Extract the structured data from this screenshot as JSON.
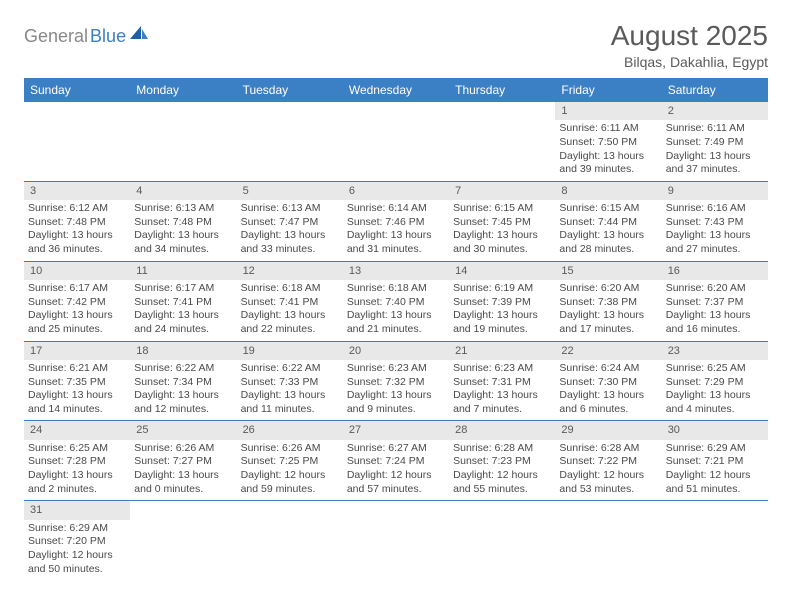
{
  "logo": {
    "text1": "General",
    "text2": "Blue"
  },
  "title": "August 2025",
  "location": "Bilqas, Dakahlia, Egypt",
  "colors": {
    "header_bg": "#3b7fc4",
    "header_text": "#ffffff",
    "datenum_bg": "#e8e8e8",
    "text": "#4a4a4a",
    "divider": "#3b7fc4"
  },
  "day_names": [
    "Sunday",
    "Monday",
    "Tuesday",
    "Wednesday",
    "Thursday",
    "Friday",
    "Saturday"
  ],
  "weeks": [
    [
      null,
      null,
      null,
      null,
      null,
      {
        "d": "1",
        "sr": "6:11 AM",
        "ss": "7:50 PM",
        "dl": "13 hours and 39 minutes."
      },
      {
        "d": "2",
        "sr": "6:11 AM",
        "ss": "7:49 PM",
        "dl": "13 hours and 37 minutes."
      }
    ],
    [
      {
        "d": "3",
        "sr": "6:12 AM",
        "ss": "7:48 PM",
        "dl": "13 hours and 36 minutes."
      },
      {
        "d": "4",
        "sr": "6:13 AM",
        "ss": "7:48 PM",
        "dl": "13 hours and 34 minutes."
      },
      {
        "d": "5",
        "sr": "6:13 AM",
        "ss": "7:47 PM",
        "dl": "13 hours and 33 minutes."
      },
      {
        "d": "6",
        "sr": "6:14 AM",
        "ss": "7:46 PM",
        "dl": "13 hours and 31 minutes."
      },
      {
        "d": "7",
        "sr": "6:15 AM",
        "ss": "7:45 PM",
        "dl": "13 hours and 30 minutes."
      },
      {
        "d": "8",
        "sr": "6:15 AM",
        "ss": "7:44 PM",
        "dl": "13 hours and 28 minutes."
      },
      {
        "d": "9",
        "sr": "6:16 AM",
        "ss": "7:43 PM",
        "dl": "13 hours and 27 minutes."
      }
    ],
    [
      {
        "d": "10",
        "sr": "6:17 AM",
        "ss": "7:42 PM",
        "dl": "13 hours and 25 minutes."
      },
      {
        "d": "11",
        "sr": "6:17 AM",
        "ss": "7:41 PM",
        "dl": "13 hours and 24 minutes."
      },
      {
        "d": "12",
        "sr": "6:18 AM",
        "ss": "7:41 PM",
        "dl": "13 hours and 22 minutes."
      },
      {
        "d": "13",
        "sr": "6:18 AM",
        "ss": "7:40 PM",
        "dl": "13 hours and 21 minutes."
      },
      {
        "d": "14",
        "sr": "6:19 AM",
        "ss": "7:39 PM",
        "dl": "13 hours and 19 minutes."
      },
      {
        "d": "15",
        "sr": "6:20 AM",
        "ss": "7:38 PM",
        "dl": "13 hours and 17 minutes."
      },
      {
        "d": "16",
        "sr": "6:20 AM",
        "ss": "7:37 PM",
        "dl": "13 hours and 16 minutes."
      }
    ],
    [
      {
        "d": "17",
        "sr": "6:21 AM",
        "ss": "7:35 PM",
        "dl": "13 hours and 14 minutes."
      },
      {
        "d": "18",
        "sr": "6:22 AM",
        "ss": "7:34 PM",
        "dl": "13 hours and 12 minutes."
      },
      {
        "d": "19",
        "sr": "6:22 AM",
        "ss": "7:33 PM",
        "dl": "13 hours and 11 minutes."
      },
      {
        "d": "20",
        "sr": "6:23 AM",
        "ss": "7:32 PM",
        "dl": "13 hours and 9 minutes."
      },
      {
        "d": "21",
        "sr": "6:23 AM",
        "ss": "7:31 PM",
        "dl": "13 hours and 7 minutes."
      },
      {
        "d": "22",
        "sr": "6:24 AM",
        "ss": "7:30 PM",
        "dl": "13 hours and 6 minutes."
      },
      {
        "d": "23",
        "sr": "6:25 AM",
        "ss": "7:29 PM",
        "dl": "13 hours and 4 minutes."
      }
    ],
    [
      {
        "d": "24",
        "sr": "6:25 AM",
        "ss": "7:28 PM",
        "dl": "13 hours and 2 minutes."
      },
      {
        "d": "25",
        "sr": "6:26 AM",
        "ss": "7:27 PM",
        "dl": "13 hours and 0 minutes."
      },
      {
        "d": "26",
        "sr": "6:26 AM",
        "ss": "7:25 PM",
        "dl": "12 hours and 59 minutes."
      },
      {
        "d": "27",
        "sr": "6:27 AM",
        "ss": "7:24 PM",
        "dl": "12 hours and 57 minutes."
      },
      {
        "d": "28",
        "sr": "6:28 AM",
        "ss": "7:23 PM",
        "dl": "12 hours and 55 minutes."
      },
      {
        "d": "29",
        "sr": "6:28 AM",
        "ss": "7:22 PM",
        "dl": "12 hours and 53 minutes."
      },
      {
        "d": "30",
        "sr": "6:29 AM",
        "ss": "7:21 PM",
        "dl": "12 hours and 51 minutes."
      }
    ],
    [
      {
        "d": "31",
        "sr": "6:29 AM",
        "ss": "7:20 PM",
        "dl": "12 hours and 50 minutes."
      },
      null,
      null,
      null,
      null,
      null,
      null
    ]
  ],
  "labels": {
    "sunrise": "Sunrise: ",
    "sunset": "Sunset: ",
    "daylight": "Daylight: "
  }
}
